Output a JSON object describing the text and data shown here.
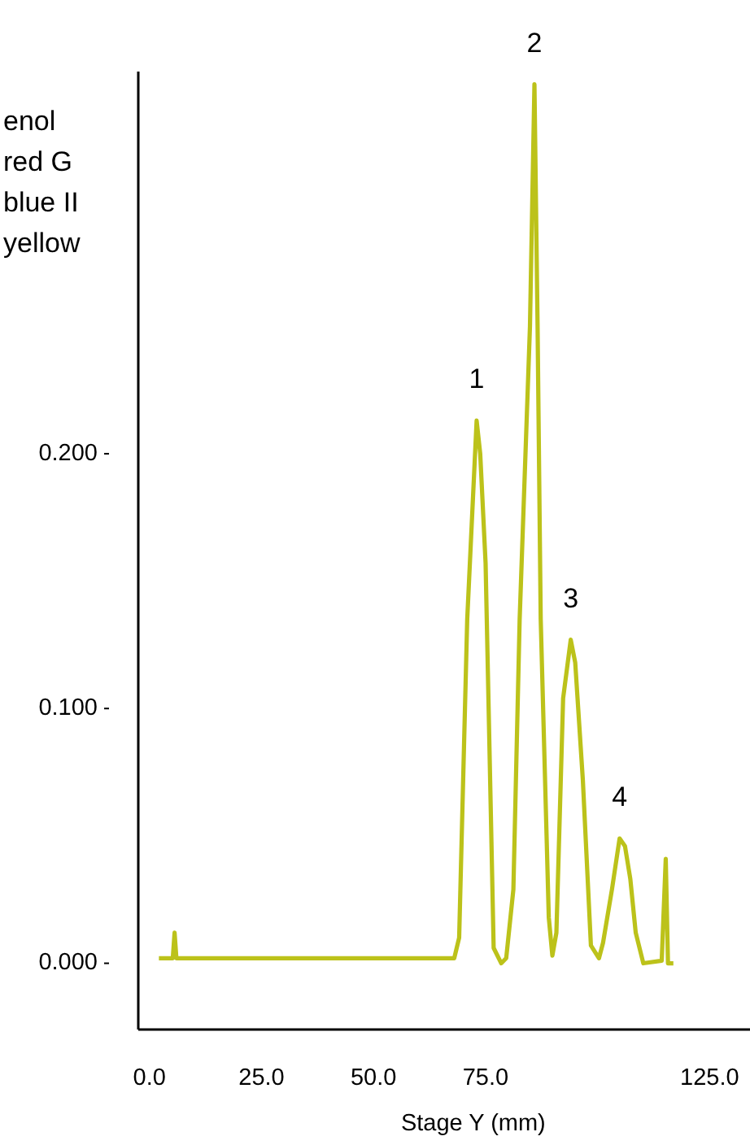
{
  "chart_data": {
    "type": "line",
    "xlabel": "Stage Y (mm)",
    "x": [
      2.1,
      5.2,
      5.6,
      6.0,
      68.0,
      69.1,
      70.9,
      73.0,
      73.8,
      75.0,
      76.8,
      78.5,
      79.6,
      81.2,
      82.6,
      84.9,
      85.9,
      86.6,
      87.3,
      89.1,
      89.9,
      90.8,
      92.3,
      94.0,
      95.0,
      96.7,
      98.5,
      100.3,
      101.2,
      103.2,
      104.9,
      106.1,
      107.3,
      108.5,
      110.2,
      114.3,
      115.2,
      115.7,
      116.9
    ],
    "series": [
      {
        "color": "#bcc21a",
        "values": [
          0.002,
          0.002,
          0.012,
          0.002,
          0.002,
          0.01,
          0.135,
          0.213,
          0.2,
          0.157,
          0.006,
          0.0,
          0.002,
          0.029,
          0.135,
          0.25,
          0.345,
          0.25,
          0.135,
          0.018,
          0.003,
          0.012,
          0.104,
          0.127,
          0.118,
          0.072,
          0.007,
          0.002,
          0.008,
          0.029,
          0.049,
          0.046,
          0.033,
          0.012,
          0.0,
          0.001,
          0.041,
          0.0,
          0.0
        ]
      }
    ],
    "xlim": [
      -2.5,
      134
    ],
    "xticks": [
      {
        "value": 0,
        "label": "0.0"
      },
      {
        "value": 25,
        "label": "25.0"
      },
      {
        "value": 50,
        "label": "50.0"
      },
      {
        "value": 75,
        "label": "75.0"
      },
      {
        "value": 125,
        "label": "125.0"
      }
    ],
    "ylim": [
      -0.026,
      0.35
    ],
    "yticks": [
      {
        "value": 0,
        "label": "0.000"
      },
      {
        "value": 0.1,
        "label": "0.100"
      },
      {
        "value": 0.2,
        "label": "0.200"
      }
    ],
    "annotations": [
      "enol",
      "red G",
      "blue II",
      "yellow",
      {
        "text": "1",
        "x": 73.0,
        "y": 0.213
      },
      {
        "text": "2",
        "x": 85.9,
        "y": 0.345
      },
      {
        "text": "3",
        "x": 94.0,
        "y": 0.127
      },
      {
        "text": "4",
        "x": 104.9,
        "y": 0.049
      }
    ]
  }
}
